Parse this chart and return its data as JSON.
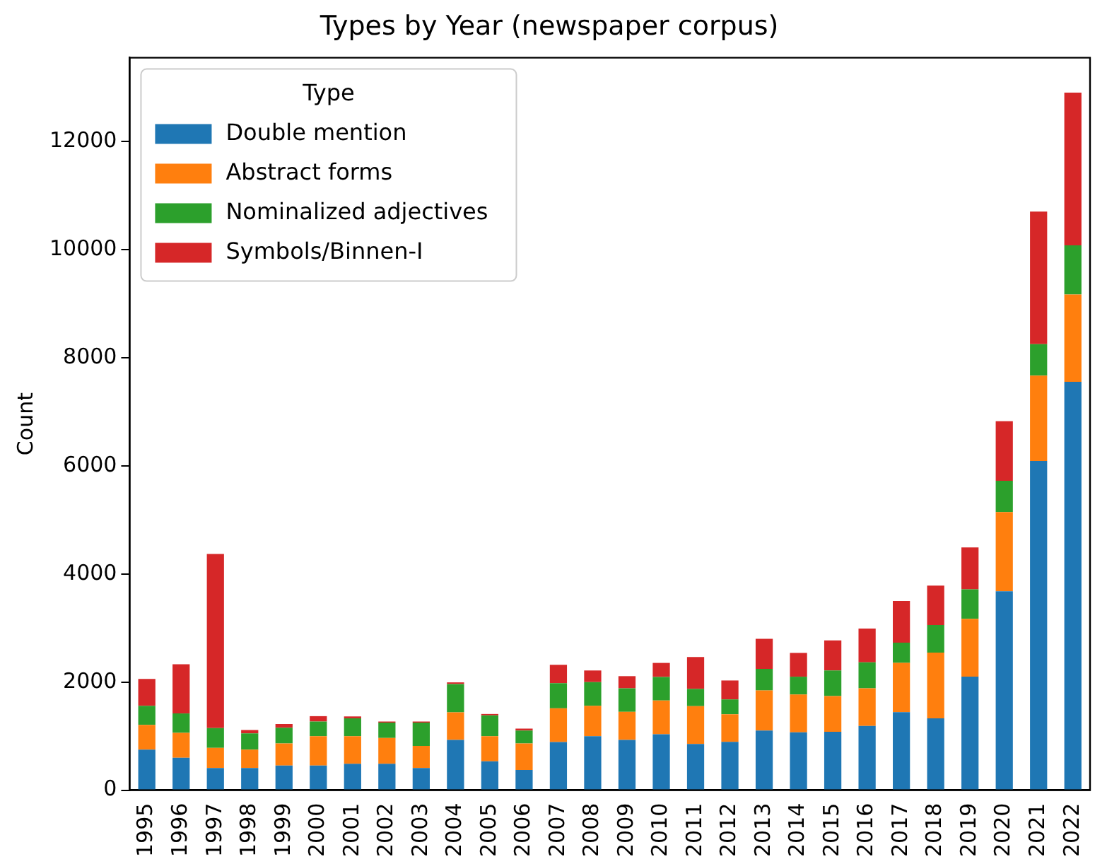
{
  "chart_data": {
    "type": "bar",
    "stacked": true,
    "title": "Types by Year (newspaper corpus)",
    "ylabel": "Count",
    "legend_title": "Type",
    "legend": "top left",
    "grid": false,
    "categories": [
      "1995",
      "1996",
      "1997",
      "1998",
      "1999",
      "2000",
      "2001",
      "2002",
      "2003",
      "2004",
      "2005",
      "2006",
      "2007",
      "2008",
      "2009",
      "2010",
      "2011",
      "2012",
      "2013",
      "2014",
      "2015",
      "2016",
      "2017",
      "2018",
      "2019",
      "2020",
      "2021",
      "2022"
    ],
    "ylim": [
      0,
      13550
    ],
    "yticks": [
      0,
      2000,
      4000,
      6000,
      8000,
      10000,
      12000
    ],
    "series": [
      {
        "name": "Double mention",
        "color": "#1f77b4",
        "values": [
          750,
          600,
          410,
          410,
          455,
          455,
          490,
          490,
          410,
          930,
          535,
          375,
          890,
          1000,
          930,
          1035,
          855,
          895,
          1105,
          1070,
          1080,
          1190,
          1445,
          1330,
          2100,
          3680,
          6090,
          7555
        ]
      },
      {
        "name": "Abstract forms",
        "color": "#ff7f0e",
        "values": [
          460,
          460,
          375,
          340,
          410,
          545,
          510,
          475,
          410,
          510,
          465,
          490,
          625,
          560,
          520,
          625,
          700,
          510,
          740,
          700,
          660,
          695,
          910,
          1215,
          1070,
          1465,
          1580,
          1615
        ]
      },
      {
        "name": "Nominalized adjectives",
        "color": "#2ca02c",
        "values": [
          350,
          360,
          365,
          300,
          290,
          270,
          330,
          285,
          430,
          525,
          385,
          240,
          465,
          440,
          435,
          435,
          320,
          275,
          400,
          330,
          475,
          480,
          375,
          510,
          545,
          580,
          580,
          910
        ]
      },
      {
        "name": "Symbols/Binnen-I",
        "color": "#d62728",
        "values": [
          500,
          910,
          3220,
          65,
          70,
          100,
          35,
          20,
          20,
          30,
          25,
          35,
          340,
          215,
          225,
          260,
          590,
          350,
          555,
          440,
          555,
          625,
          770,
          730,
          775,
          1100,
          2455,
          2825
        ]
      }
    ]
  }
}
